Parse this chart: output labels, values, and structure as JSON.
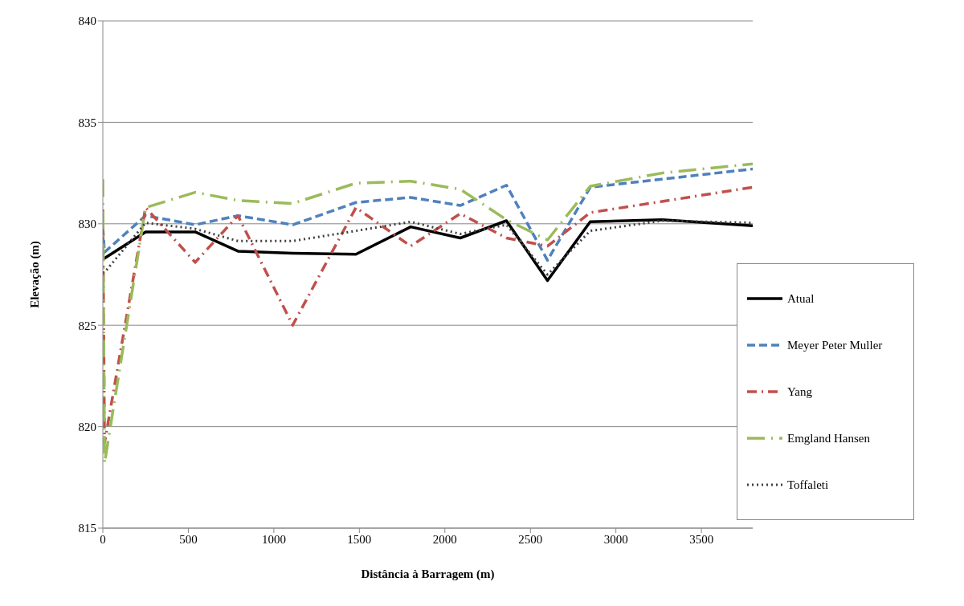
{
  "chart_data": {
    "type": "line",
    "xlabel": "Distância à Barragem (m)",
    "ylabel": "Elevação (m)",
    "x": [
      0,
      10,
      250,
      540,
      790,
      1110,
      1480,
      1800,
      2090,
      2360,
      2600,
      2850,
      3270,
      3800
    ],
    "xlim": [
      0,
      3800
    ],
    "xticks": [
      0,
      500,
      1000,
      1500,
      2000,
      2500,
      3000,
      3500
    ],
    "ylim": [
      815,
      840
    ],
    "yticks": [
      815,
      820,
      825,
      830,
      835,
      840
    ],
    "grid": "y",
    "legend": "bottom right",
    "marker": "none",
    "series": [
      {
        "name": "Atual",
        "color": "#000000",
        "line_style": "solid",
        "values": [
          828.3,
          828.3,
          829.6,
          829.6,
          828.65,
          828.55,
          828.5,
          829.85,
          829.3,
          830.15,
          827.2,
          830.1,
          830.2,
          829.9
        ]
      },
      {
        "name": "Meyer Peter Muller",
        "color": "#4f81bd",
        "line_style": "dashed",
        "values": [
          829.8,
          828.6,
          830.4,
          829.95,
          830.4,
          829.95,
          831.05,
          831.3,
          830.9,
          831.9,
          828.2,
          831.8,
          832.2,
          832.7
        ]
      },
      {
        "name": "Yang",
        "color": "#c0504d",
        "line_style": "dashdot",
        "values": [
          830.7,
          819.2,
          830.8,
          828.1,
          830.4,
          825.0,
          830.8,
          828.9,
          830.5,
          829.3,
          828.9,
          830.55,
          831.1,
          831.8
        ]
      },
      {
        "name": "Emgland Hansen",
        "color": "#9bbb59",
        "line_style": "longdashdot",
        "values": [
          832.2,
          818.2,
          830.8,
          831.55,
          831.15,
          831.0,
          832.0,
          832.1,
          831.7,
          830.2,
          829.2,
          831.85,
          832.5,
          832.95
        ]
      },
      {
        "name": "Toffaleti",
        "color": "#404040",
        "line_style": "dotted",
        "values": [
          827.6,
          827.6,
          830.05,
          829.75,
          829.15,
          829.15,
          829.65,
          830.1,
          829.5,
          829.95,
          827.5,
          829.65,
          830.15,
          830.05
        ]
      }
    ]
  }
}
